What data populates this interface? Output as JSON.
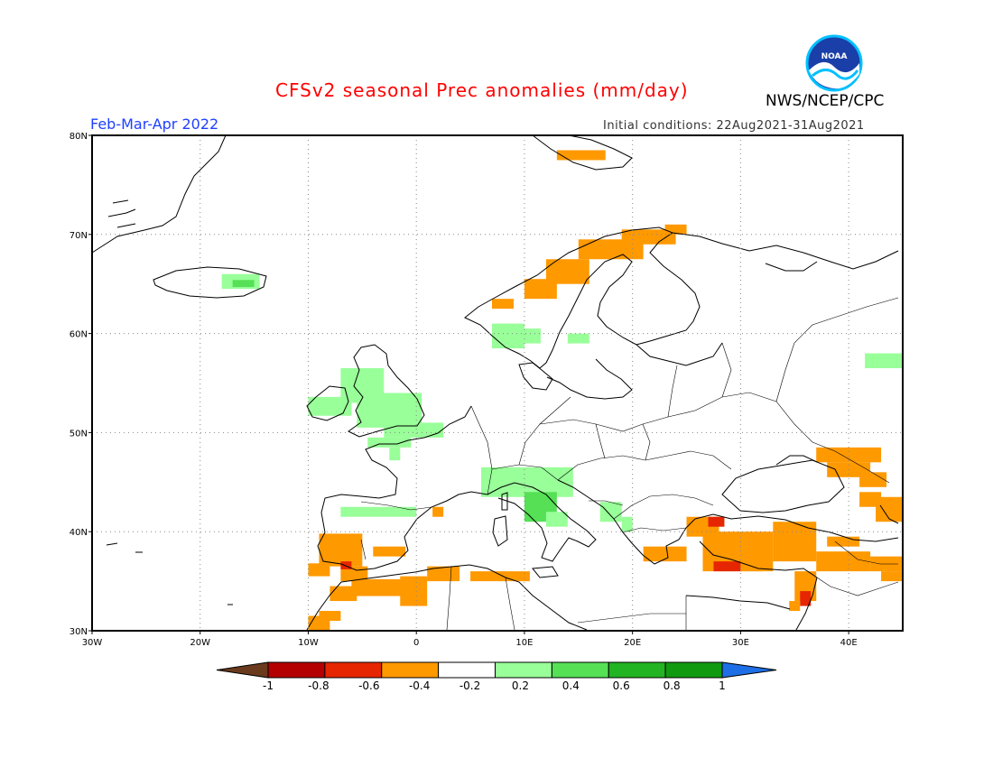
{
  "header": {
    "title": "CFSv2 seasonal Prec anomalies (mm/day)",
    "agency": "NWS/NCEP/CPC",
    "season": "Feb-Mar-Apr 2022",
    "initial_conditions": "Initial conditions: 22Aug2021-31Aug2021",
    "logo_text": "NOAA"
  },
  "map": {
    "lon_labels": [
      "30W",
      "20W",
      "10W",
      "0",
      "10E",
      "20E",
      "30E",
      "40E"
    ],
    "lat_labels": [
      "80N",
      "70N",
      "60N",
      "50N",
      "40N",
      "30N"
    ],
    "lon_range": [
      -30,
      45
    ],
    "lat_range": [
      30,
      80
    ],
    "grid": true
  },
  "legend": {
    "labels": [
      "-1",
      "-0.8",
      "-0.6",
      "-0.4",
      "-0.2",
      "0.2",
      "0.4",
      "0.6",
      "0.8",
      "1"
    ],
    "colors": [
      "#b40000",
      "#e62600",
      "#ff9900",
      "#ffffff",
      "#99ff99",
      "#55e055",
      "#22b422",
      "#109a10"
    ],
    "under_color": "#6a3a1c",
    "over_color": "#1e6ee6"
  },
  "anomaly_colors": {
    "dry_moderate": "#ff9900",
    "dry_strong": "#e62600",
    "wet_light": "#99ff99",
    "wet_moderate": "#55e055"
  }
}
